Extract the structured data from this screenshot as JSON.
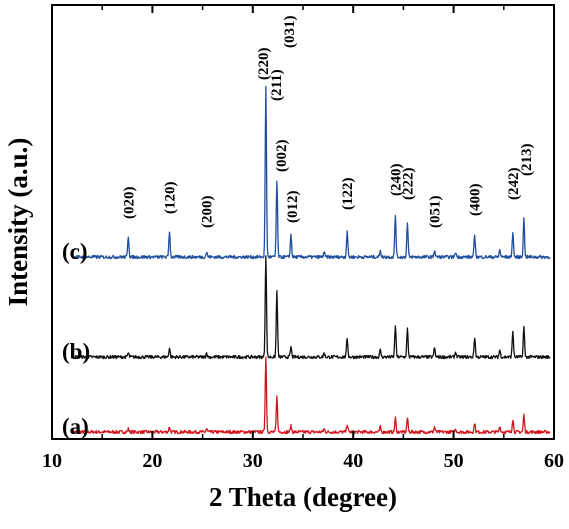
{
  "chart_data": {
    "type": "line",
    "title": "",
    "xlabel": "2 Theta (degree)",
    "ylabel": "Intensity (a.u.)",
    "xlim": [
      10,
      60
    ],
    "x_ticks": [
      10,
      20,
      30,
      40,
      50,
      60
    ],
    "y_ticks": "none",
    "grid": false,
    "legend": "none",
    "peak_positions_deg": [
      17.6,
      21.7,
      25.4,
      31.3,
      32.4,
      33.8,
      37.1,
      39.4,
      42.7,
      44.2,
      45.4,
      48.1,
      50.2,
      52.1,
      54.6,
      55.9,
      57.0
    ],
    "series": [
      {
        "name": "(a)",
        "color": "#d4141c",
        "offset": 0,
        "peak_heights": [
          3,
          5,
          3,
          75,
          35,
          6,
          3,
          8,
          5,
          14,
          14,
          5,
          3,
          9,
          6,
          13,
          17
        ]
      },
      {
        "name": "(b)",
        "color": "#111111",
        "offset": 75,
        "peak_heights": [
          4,
          9,
          4,
          102,
          66,
          10,
          4,
          19,
          7,
          32,
          28,
          9,
          5,
          20,
          7,
          26,
          30
        ]
      },
      {
        "name": "(c)",
        "color": "#1f4f9e",
        "offset": 175,
        "peak_heights": [
          21,
          26,
          5,
          170,
          76,
          22,
          5,
          26,
          7,
          42,
          34,
          7,
          5,
          22,
          7,
          25,
          38
        ]
      }
    ],
    "peak_labels": [
      {
        "text": "(020)",
        "x": 17.6,
        "y": 213
      },
      {
        "text": "(120)",
        "x": 21.7,
        "y": 218
      },
      {
        "text": "(200)",
        "x": 25.4,
        "y": 204
      },
      {
        "text": "(220)",
        "x": 31.0,
        "y": 352
      },
      {
        "text": "(211)",
        "x": 32.3,
        "y": 331
      },
      {
        "text": "(031)",
        "x": 33.6,
        "y": 384
      },
      {
        "text": "(002)",
        "x": 32.8,
        "y": 260
      },
      {
        "text": "(012)",
        "x": 33.9,
        "y": 209
      },
      {
        "text": "(122)",
        "x": 39.4,
        "y": 222
      },
      {
        "text": "(240)",
        "x": 44.2,
        "y": 236
      },
      {
        "text": "(222)",
        "x": 45.4,
        "y": 232
      },
      {
        "text": "(051)",
        "x": 48.1,
        "y": 204
      },
      {
        "text": "(400)",
        "x": 52.1,
        "y": 216
      },
      {
        "text": "(242)",
        "x": 55.9,
        "y": 232
      },
      {
        "text": "(213)",
        "x": 57.2,
        "y": 256
      }
    ]
  }
}
